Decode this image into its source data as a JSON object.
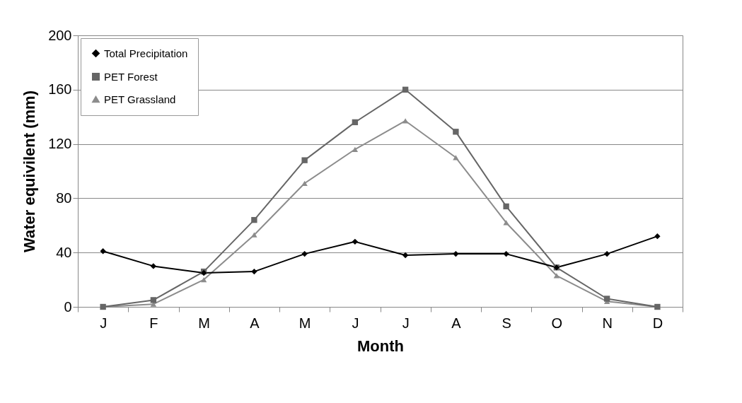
{
  "chart_data": {
    "type": "line",
    "xlabel": "Month",
    "ylabel": "Water equivilent (mm)",
    "categories": [
      "J",
      "F",
      "M",
      "A",
      "M",
      "J",
      "J",
      "A",
      "S",
      "O",
      "N",
      "D"
    ],
    "series": [
      {
        "name": "Total Precipitation",
        "color": "#000000",
        "marker": "diamond",
        "values": [
          41,
          30,
          25,
          26,
          39,
          48,
          38,
          39,
          39,
          29,
          39,
          52
        ]
      },
      {
        "name": "PET Forest",
        "color": "#666666",
        "marker": "square",
        "values": [
          0,
          5,
          26,
          64,
          108,
          136,
          160,
          129,
          74,
          29,
          6,
          0
        ]
      },
      {
        "name": "PET Grassland",
        "color": "#8c8c8c",
        "marker": "triangle",
        "values": [
          0,
          2,
          20,
          53,
          91,
          116,
          137,
          110,
          62,
          23,
          4,
          0
        ]
      }
    ],
    "ylim": [
      0,
      200
    ],
    "yticks": [
      0,
      40,
      80,
      120,
      160,
      200
    ],
    "grid": "y",
    "legend": "top left"
  }
}
